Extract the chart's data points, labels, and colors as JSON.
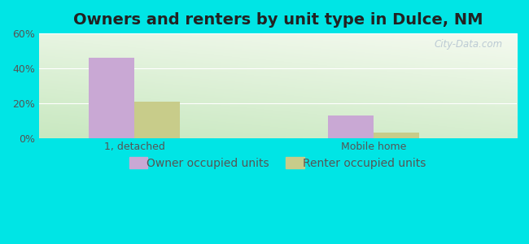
{
  "title": "Owners and renters by unit type in Dulce, NM",
  "categories": [
    "1, detached",
    "Mobile home"
  ],
  "owner_values": [
    46,
    13
  ],
  "renter_values": [
    21,
    3
  ],
  "owner_color": "#c9a8d4",
  "renter_color": "#c8cc8a",
  "ylim": [
    0,
    60
  ],
  "yticks": [
    0,
    20,
    40,
    60
  ],
  "ytick_labels": [
    "0%",
    "20%",
    "40%",
    "60%"
  ],
  "background_color": "#00e5e5",
  "plot_bg_color_top": "#f5faf0",
  "plot_bg_color_bottom": "#d8efd0",
  "watermark": "City-Data.com",
  "bar_width": 0.38,
  "group_positions": [
    1.0,
    3.0
  ],
  "xlim": [
    0.2,
    4.2
  ],
  "legend_owner": "Owner occupied units",
  "legend_renter": "Renter occupied units",
  "title_fontsize": 14,
  "tick_fontsize": 9,
  "legend_fontsize": 10,
  "grid_color": "#e8e8e8"
}
